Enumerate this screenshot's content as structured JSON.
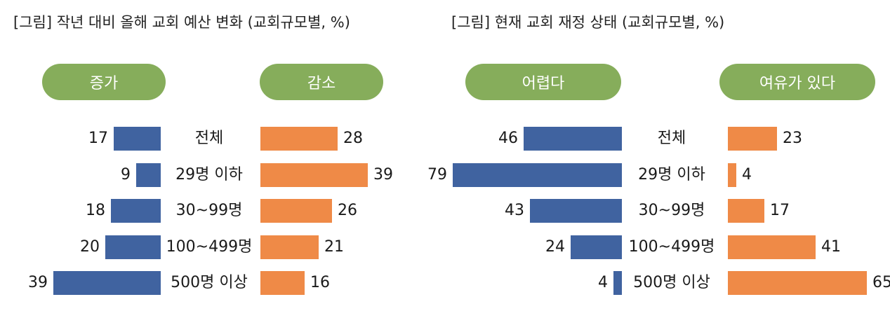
{
  "chart_data": [
    {
      "type": "bar",
      "title": "[그림] 작년 대비 올해 교회 예산 변화 (교회규모별, %)",
      "categories": [
        "전체",
        "29명 이하",
        "30~99명",
        "100~499명",
        "500명 이상"
      ],
      "series": [
        {
          "name": "증가",
          "values": [
            17,
            9,
            18,
            20,
            39
          ],
          "color": "#4063a0"
        },
        {
          "name": "감소",
          "values": [
            28,
            39,
            26,
            21,
            16
          ],
          "color": "#ef8a47"
        }
      ]
    },
    {
      "type": "bar",
      "title": "[그림] 현재 교회 재정 상태 (교회규모별, %)",
      "categories": [
        "전체",
        "29명 이하",
        "30~99명",
        "100~499명",
        "500명 이상"
      ],
      "series": [
        {
          "name": "어렵다",
          "values": [
            46,
            79,
            43,
            24,
            4
          ],
          "color": "#4063a0"
        },
        {
          "name": "여유가 있다",
          "values": [
            23,
            4,
            17,
            41,
            65
          ],
          "color": "#ef8a47"
        }
      ]
    }
  ],
  "legend_color": "#86ad5b"
}
